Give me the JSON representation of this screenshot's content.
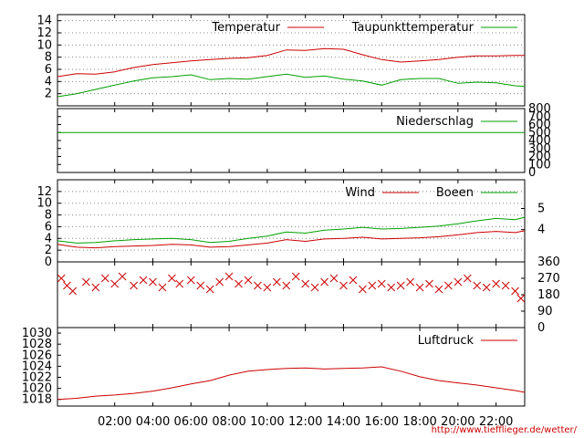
{
  "credit_url": "http://www.tiefflieger.de/wetter/",
  "colors": {
    "red": "#cc0000",
    "green": "#00a000",
    "grid": "#888888",
    "axis": "#000000"
  },
  "x_axis": {
    "tick_labels": [
      "02:00",
      "04:00",
      "06:00",
      "08:00",
      "10:00",
      "12:00",
      "14:00",
      "16:00",
      "18:00",
      "20:00",
      "22:00"
    ],
    "tick_hours": [
      2,
      4,
      6,
      8,
      10,
      12,
      14,
      16,
      18,
      20,
      22
    ],
    "range_hours": [
      -1,
      23.5
    ]
  },
  "chart_data": [
    {
      "type": "line",
      "title": "",
      "ylim": [
        0,
        15
      ],
      "yticks": [
        "2",
        "4",
        "6",
        "8",
        "10",
        "12",
        "14"
      ],
      "ytick_values": [
        2,
        4,
        6,
        8,
        10,
        12,
        14
      ],
      "grid": true,
      "legend_position": "top-right",
      "series": [
        {
          "name": "Temperatur",
          "color": "#cc0000",
          "x": [
            -1,
            0,
            1,
            2,
            3,
            4,
            5,
            6,
            7,
            8,
            9,
            10,
            11,
            12,
            13,
            14,
            15,
            16,
            17,
            18,
            19,
            20,
            21,
            22,
            23,
            23.5
          ],
          "y": [
            4.8,
            5.3,
            5.2,
            5.6,
            6.3,
            6.8,
            7.1,
            7.4,
            7.6,
            7.8,
            7.9,
            8.3,
            9.2,
            9.1,
            9.4,
            9.3,
            8.4,
            7.6,
            7.2,
            7.4,
            7.6,
            8.0,
            8.2,
            8.2,
            8.3,
            8.3
          ]
        },
        {
          "name": "Taupunkttemperatur",
          "color": "#00a000",
          "x": [
            -1,
            0,
            1,
            2,
            3,
            4,
            5,
            6,
            7,
            8,
            9,
            10,
            11,
            12,
            13,
            14,
            15,
            16,
            17,
            18,
            19,
            20,
            21,
            22,
            23,
            23.5
          ],
          "y": [
            1.5,
            2.0,
            2.7,
            3.4,
            4.1,
            4.6,
            4.8,
            5.1,
            4.3,
            4.5,
            4.4,
            4.8,
            5.2,
            4.7,
            4.9,
            4.4,
            4.1,
            3.4,
            4.3,
            4.5,
            4.5,
            3.7,
            3.9,
            3.8,
            3.3,
            3.2
          ]
        }
      ]
    },
    {
      "type": "line",
      "title": "",
      "ylim": [
        0,
        800
      ],
      "yticks": [
        "0",
        "100",
        "200",
        "300",
        "400",
        "500",
        "600",
        "700",
        "800"
      ],
      "ytick_values": [
        0,
        100,
        200,
        300,
        400,
        500,
        600,
        700,
        800
      ],
      "legend_position": "top-right",
      "series": [
        {
          "name": "Niederschlag",
          "color": "#00a000",
          "x": [
            -1,
            23.5
          ],
          "y": [
            500,
            500
          ]
        }
      ]
    },
    {
      "type": "line",
      "title": "",
      "ylim": [
        0,
        14
      ],
      "yticks": [
        "0",
        "2",
        "4",
        "6",
        "8",
        "10",
        "12"
      ],
      "ytick_values": [
        0,
        2,
        4,
        6,
        8,
        10,
        12
      ],
      "right_yticks": [
        "4",
        "5"
      ],
      "right_ytick_values": [
        5.5,
        9.1
      ],
      "grid": true,
      "legend_position": "top-right",
      "series": [
        {
          "name": "Wind",
          "color": "#cc0000",
          "x": [
            -1,
            0,
            1,
            2,
            3,
            4,
            5,
            6,
            7,
            8,
            9,
            10,
            11,
            12,
            13,
            14,
            15,
            16,
            17,
            18,
            19,
            20,
            21,
            22,
            23,
            23.5
          ],
          "y": [
            3.0,
            2.5,
            2.4,
            2.6,
            2.7,
            2.8,
            3.0,
            2.9,
            2.5,
            2.6,
            2.9,
            3.2,
            3.8,
            3.5,
            3.9,
            4.0,
            4.2,
            3.9,
            4.0,
            4.1,
            4.3,
            4.6,
            5.0,
            5.2,
            5.0,
            5.3
          ]
        },
        {
          "name": "Boeen",
          "color": "#00a000",
          "x": [
            -1,
            0,
            1,
            2,
            3,
            4,
            5,
            6,
            7,
            8,
            9,
            10,
            11,
            12,
            13,
            14,
            15,
            16,
            17,
            18,
            19,
            20,
            21,
            22,
            23,
            23.5
          ],
          "y": [
            3.6,
            3.2,
            3.3,
            3.6,
            3.8,
            3.9,
            4.0,
            3.8,
            3.3,
            3.5,
            4.0,
            4.4,
            5.1,
            4.9,
            5.4,
            5.6,
            5.9,
            5.6,
            5.7,
            5.9,
            6.1,
            6.5,
            7.0,
            7.4,
            7.2,
            7.6
          ]
        }
      ]
    },
    {
      "type": "scatter",
      "title": "",
      "ylim": [
        0,
        360
      ],
      "right_yticks": [
        "0",
        "90",
        "180",
        "270",
        "360"
      ],
      "right_ytick_values": [
        0,
        90,
        180,
        270,
        360
      ],
      "series": [
        {
          "name": "",
          "color": "#cc0000",
          "marker": "x",
          "x": [
            -0.8,
            -0.5,
            -0.2,
            0.5,
            1.0,
            1.5,
            2.0,
            2.4,
            3.0,
            3.5,
            4.0,
            4.5,
            5.0,
            5.4,
            6.0,
            6.5,
            7.0,
            7.5,
            8.0,
            8.5,
            9.0,
            9.5,
            10.0,
            10.5,
            11.0,
            11.5,
            12.0,
            12.5,
            13.0,
            13.5,
            14.0,
            14.5,
            15.0,
            15.5,
            16.0,
            16.5,
            17.0,
            17.5,
            18.0,
            18.5,
            19.0,
            19.5,
            20.0,
            20.5,
            21.0,
            21.5,
            22.0,
            22.5,
            23.0,
            23.3
          ],
          "y": [
            270,
            230,
            200,
            250,
            220,
            270,
            240,
            280,
            230,
            260,
            250,
            220,
            270,
            240,
            260,
            230,
            210,
            250,
            280,
            240,
            260,
            230,
            220,
            250,
            230,
            280,
            240,
            220,
            250,
            270,
            230,
            260,
            210,
            230,
            240,
            220,
            230,
            250,
            220,
            240,
            210,
            230,
            250,
            270,
            230,
            220,
            240,
            230,
            200,
            160
          ]
        }
      ]
    },
    {
      "type": "line",
      "title": "",
      "ylim": [
        1016.8,
        1031
      ],
      "yticks": [
        "1018",
        "1020",
        "1022",
        "1024",
        "1026",
        "1028",
        "1030"
      ],
      "ytick_values": [
        1018,
        1020,
        1022,
        1024,
        1026,
        1028,
        1030
      ],
      "legend_position": "top-right",
      "series": [
        {
          "name": "Luftdruck",
          "color": "#cc0000",
          "x": [
            -1,
            0,
            1,
            2,
            3,
            4,
            5,
            6,
            7,
            8,
            9,
            10,
            11,
            12,
            13,
            14,
            15,
            16,
            17,
            18,
            19,
            20,
            21,
            22,
            23,
            23.5
          ],
          "y": [
            1018.0,
            1018.2,
            1018.6,
            1018.8,
            1019.1,
            1019.5,
            1020.1,
            1020.8,
            1021.4,
            1022.4,
            1023.1,
            1023.4,
            1023.6,
            1023.7,
            1023.5,
            1023.6,
            1023.7,
            1023.9,
            1023.1,
            1022.1,
            1021.4,
            1021.0,
            1020.6,
            1020.1,
            1019.6,
            1019.3
          ]
        }
      ]
    }
  ]
}
